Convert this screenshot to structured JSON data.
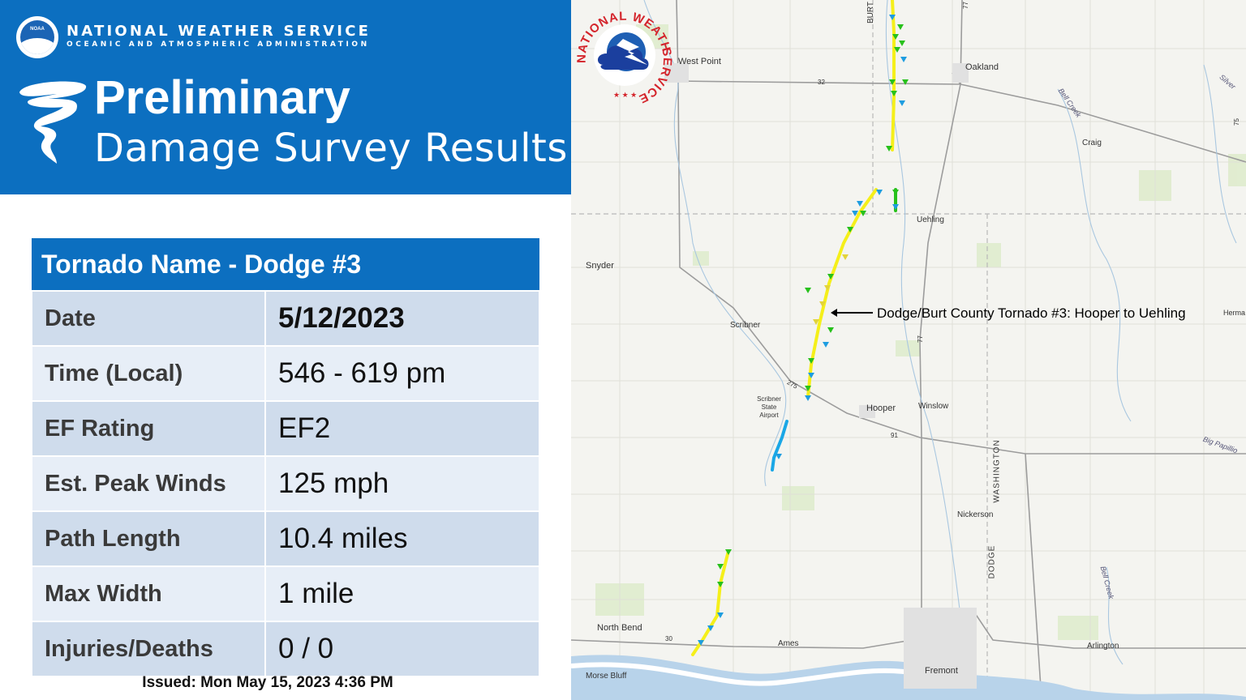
{
  "header": {
    "agency": "NATIONAL WEATHER SERVICE",
    "agency_sub": "OCEANIC AND ATMOSPHERIC ADMINISTRATION",
    "logo_text": "NOAA",
    "title": "Preliminary",
    "subtitle": "Damage Survey Results"
  },
  "table": {
    "title": "Tornado Name - Dodge #3",
    "rows": [
      {
        "label": "Date",
        "value": "5/12/2023"
      },
      {
        "label": "Time (Local)",
        "value": "546 - 619 pm"
      },
      {
        "label": "EF Rating",
        "value": "EF2"
      },
      {
        "label": "Est. Peak Winds",
        "value": "125 mph"
      },
      {
        "label": "Path Length",
        "value": "10.4 miles"
      },
      {
        "label": "Max Width",
        "value": "1 mile"
      },
      {
        "label": "Injuries/Deaths",
        "value": "0 / 0"
      }
    ]
  },
  "issued": "Issued: Mon May 15, 2023 4:36 PM",
  "map": {
    "annotation": "Dodge/Burt County Tornado #3: Hooper to Uehling",
    "labels": {
      "west_point": "West Point",
      "oakland": "Oakland",
      "craig": "Craig",
      "uehling": "Uehling",
      "snyder": "Snyder",
      "scribner": "Scribner",
      "scribner_airport": "Scribner State Airport",
      "hooper": "Hooper",
      "winslow": "Winslow",
      "nickerson": "Nickerson",
      "north_bend": "North Bend",
      "ames": "Ames",
      "fremont": "Fremont",
      "morse_bluff": "Morse Bluff",
      "arlington": "Arlington",
      "burt": "BURT",
      "washington": "WASHINGTON",
      "dodge": "DODGE",
      "bell_creek": "Bell Creek",
      "silver": "Silver",
      "big_papillion": "Big Papillio",
      "herman": "Herma",
      "route_32": "32",
      "route_275": "275",
      "route_91": "91",
      "route_30": "30",
      "route_77": "77",
      "route_75": "75"
    },
    "seal_text_top": "NATIONAL WEATHER",
    "seal_text_bottom": "SERVICE",
    "colors": {
      "track_yellow": "#f5ef1a",
      "track_blue": "#1aa7e6",
      "marker_green": "#27c11b",
      "marker_blue": "#1e9de0",
      "marker_yellow": "#e3d43a"
    }
  }
}
